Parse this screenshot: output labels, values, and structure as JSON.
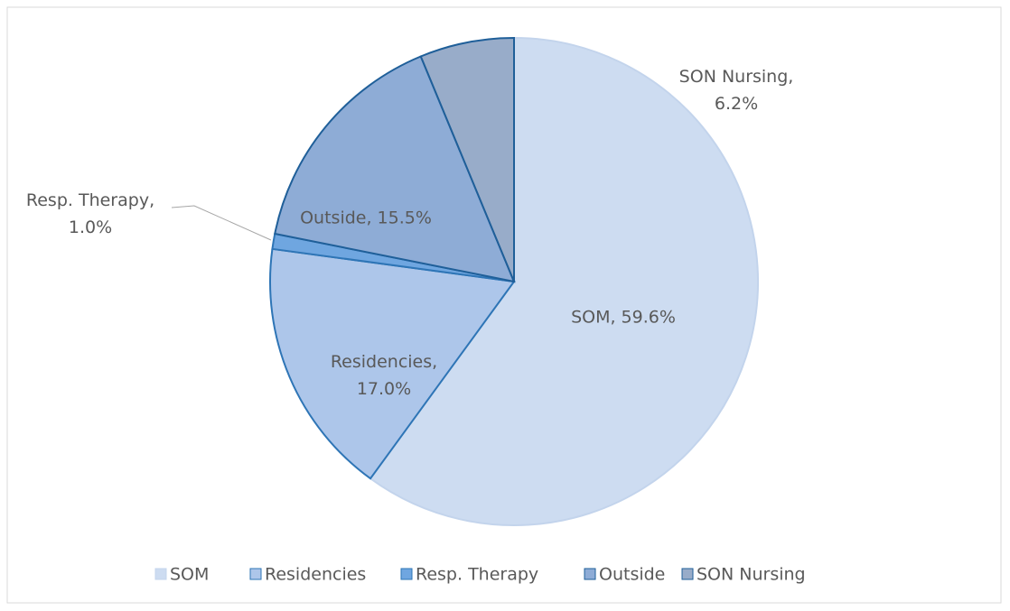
{
  "chart_data": {
    "type": "pie",
    "categories": [
      "SOM",
      "Residencies",
      "Resp. Therapy",
      "Outside",
      "SON Nursing"
    ],
    "values": [
      59.6,
      17.0,
      1.0,
      15.5,
      6.2
    ],
    "value_labels": [
      "SOM, 59.6%",
      "Residencies, 17.0%",
      "Resp. Therapy, 1.0%",
      "Outside, 15.5%",
      "SON Nursing, 6.2%"
    ],
    "colors": [
      "#cddcf1",
      "#adc6ea",
      "#6fa6e0",
      "#8eacd6",
      "#98acc9"
    ],
    "legend": "bottom"
  }
}
